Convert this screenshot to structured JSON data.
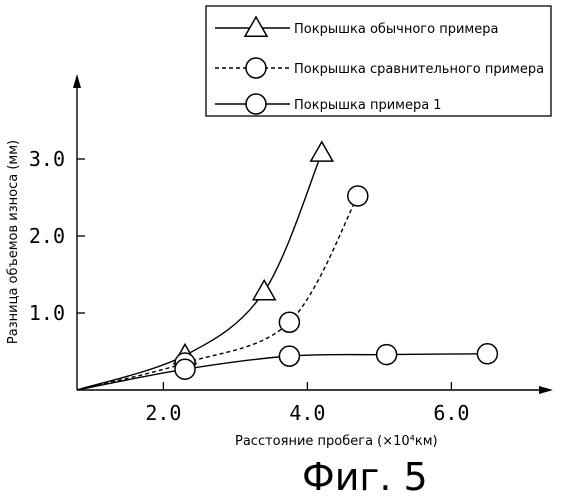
{
  "figure": {
    "caption": "Фиг. 5"
  },
  "chart_data": {
    "type": "line",
    "xlabel": "Расстояние пробега (×10⁴км)",
    "ylabel": "Разница объемов износа (мм)",
    "x_ticks": [
      "2.0",
      "4.0",
      "6.0"
    ],
    "y_ticks": [
      "1.0",
      "2.0",
      "3.0"
    ],
    "xlim": [
      0.8,
      7.3
    ],
    "ylim": [
      0.0,
      4.0
    ],
    "grid": false,
    "legend_position": "top-right",
    "origin": [
      0.8,
      0.0
    ],
    "series": [
      {
        "name": "Покрышка обычного примера",
        "marker": "triangle",
        "line_style": "solid",
        "x": [
          2.3,
          3.4,
          4.2
        ],
        "y": [
          0.45,
          1.28,
          3.08
        ]
      },
      {
        "name": "Покрышка сравнительного примера",
        "marker": "circle",
        "line_style": "dashed",
        "x": [
          2.3,
          3.75,
          4.7
        ],
        "y": [
          0.35,
          0.88,
          2.52
        ]
      },
      {
        "name": "Покрышка примера 1",
        "marker": "circle",
        "line_style": "solid",
        "x": [
          2.3,
          3.75,
          5.1,
          6.5
        ],
        "y": [
          0.27,
          0.44,
          0.46,
          0.47
        ]
      }
    ]
  }
}
